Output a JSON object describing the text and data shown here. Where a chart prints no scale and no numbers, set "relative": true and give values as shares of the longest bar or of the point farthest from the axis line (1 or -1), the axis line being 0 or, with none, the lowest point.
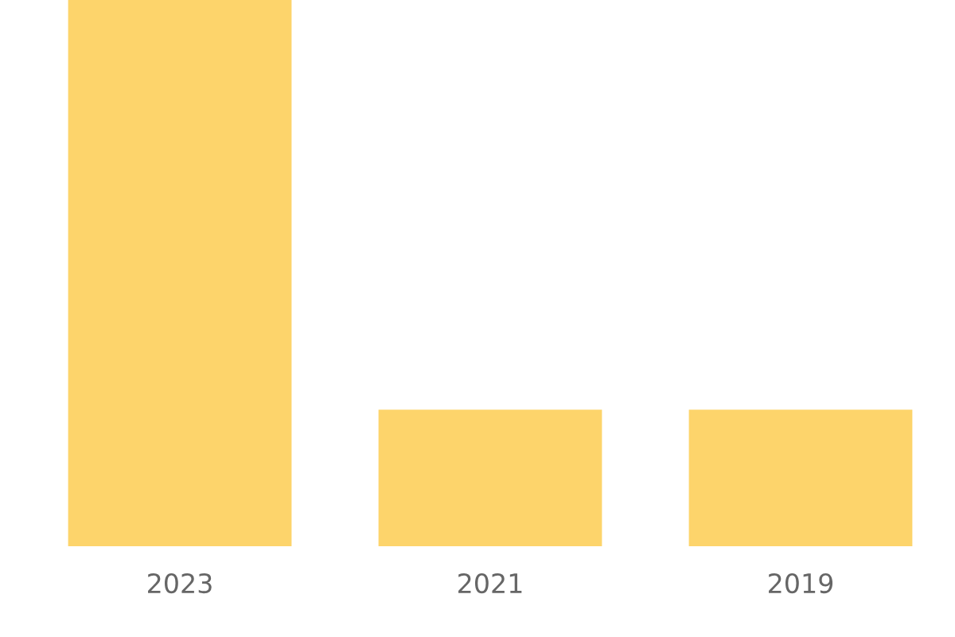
{
  "chart_data": {
    "type": "bar",
    "categories": [
      "2023",
      "2021",
      "2019"
    ],
    "values": [
      1,
      0.25,
      0.25
    ],
    "color": "#fdd46b",
    "relative": true,
    "grid": false
  }
}
